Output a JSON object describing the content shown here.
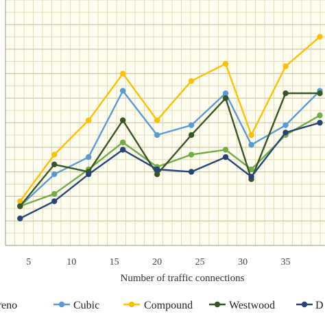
{
  "chart_data": {
    "type": "line",
    "xlabel": "Number of traffic connections",
    "ylabel": "",
    "xlim": [
      2.3,
      39.6
    ],
    "ylim": [
      0,
      10
    ],
    "x_ticks": [
      5,
      10,
      15,
      20,
      25,
      30,
      35
    ],
    "grid": "on",
    "legend_position": "bottom",
    "x": [
      4,
      8,
      12,
      16,
      20,
      24,
      28,
      31,
      35,
      39
    ],
    "series": [
      {
        "name": "Vegas / Hybla / Newreno",
        "legend_label": "ewreno",
        "color": "#70ad47",
        "values": [
          1.6,
          2.1,
          3.1,
          4.2,
          3.2,
          3.7,
          3.9,
          3.1,
          4.5,
          5.3
        ]
      },
      {
        "name": "Cubic",
        "legend_label": "Cubic",
        "color": "#5b9bd5",
        "values": [
          1.6,
          2.9,
          3.6,
          6.3,
          4.5,
          4.9,
          6.2,
          4.1,
          4.9,
          6.3
        ]
      },
      {
        "name": "Compound",
        "legend_label": "Compound",
        "color": "#ffc000",
        "values": [
          1.8,
          3.7,
          5.1,
          7.0,
          5.1,
          6.7,
          7.4,
          4.5,
          7.3,
          8.5
        ]
      },
      {
        "name": "Westwood",
        "legend_label": "Westwood",
        "color": "#375623",
        "values": [
          1.6,
          3.3,
          3.0,
          5.1,
          2.9,
          4.5,
          6.0,
          2.7,
          6.2,
          6.2
        ]
      },
      {
        "name": "D",
        "legend_label": "D",
        "color": "#264478",
        "values": [
          1.1,
          1.8,
          2.9,
          3.9,
          3.1,
          3.0,
          3.6,
          2.8,
          4.6,
          5.0
        ]
      }
    ]
  }
}
